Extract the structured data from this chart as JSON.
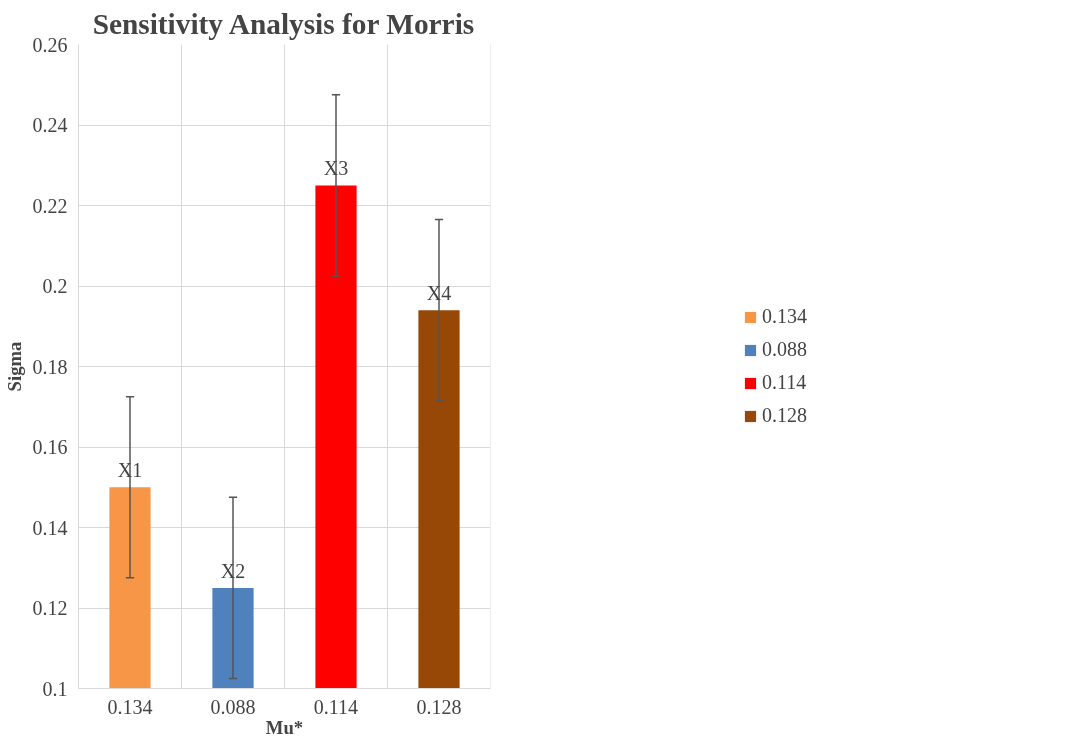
{
  "chart_data": {
    "type": "bar",
    "title": "Sensitivity Analysis for Morris",
    "xlabel": "Mu*",
    "ylabel": "Sigma",
    "categories": [
      "0.134",
      "0.088",
      "0.114",
      "0.128"
    ],
    "series": [
      {
        "name": "0.134",
        "color": "#f79646",
        "values": [
          0.15,
          null,
          null,
          null
        ],
        "errors": [
          0.0225,
          null,
          null,
          null
        ]
      },
      {
        "name": "0.088",
        "color": "#4f81bd",
        "values": [
          null,
          0.125,
          null,
          null
        ],
        "errors": [
          null,
          0.0225,
          null,
          null
        ]
      },
      {
        "name": "0.114",
        "color": "#ff0000",
        "values": [
          null,
          null,
          0.225,
          null
        ],
        "errors": [
          null,
          null,
          0.0225,
          null
        ]
      },
      {
        "name": "0.128",
        "color": "#974706",
        "values": [
          null,
          null,
          null,
          0.194
        ],
        "errors": [
          null,
          null,
          null,
          0.0225
        ]
      }
    ],
    "ylim": [
      0.1,
      0.26
    ],
    "yticks": [
      0.1,
      0.12,
      0.14,
      0.16,
      0.18,
      0.2,
      0.22,
      0.24,
      0.26
    ],
    "grid": true,
    "legend": "right",
    "annotations": [
      {
        "text": "X1",
        "x": "0.134",
        "y": 0.15
      },
      {
        "text": "X2",
        "x": "0.088",
        "y": 0.125
      },
      {
        "text": "X3",
        "x": "0.114",
        "y": 0.225
      },
      {
        "text": "X4",
        "x": "0.128",
        "y": 0.194
      }
    ]
  }
}
